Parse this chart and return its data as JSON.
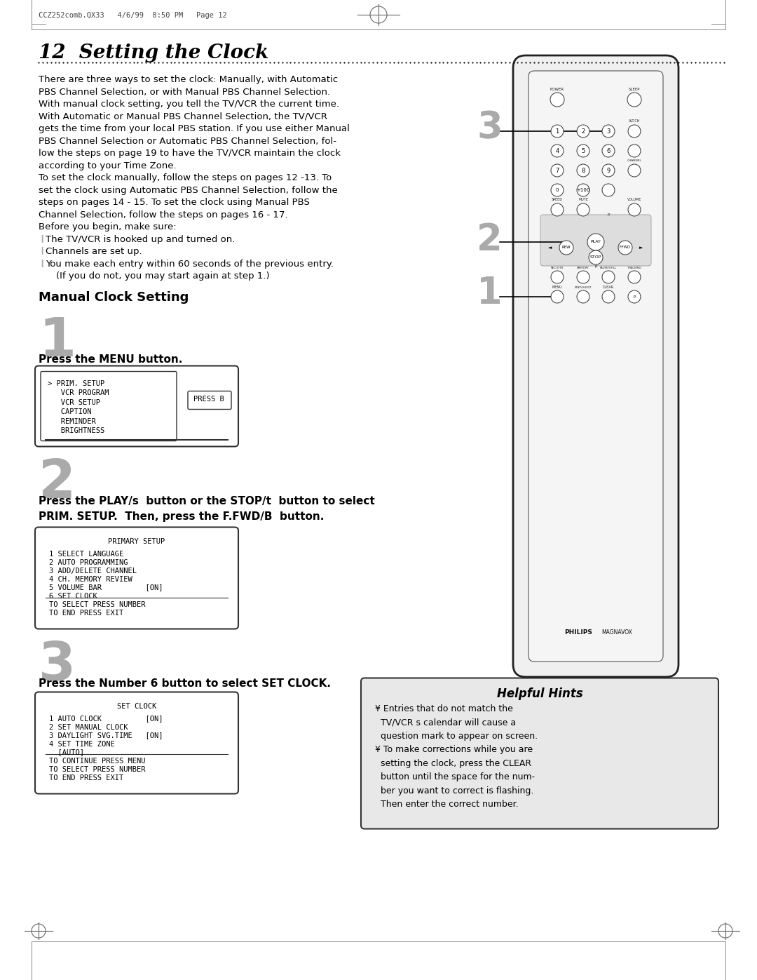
{
  "page_header": "CCZ252comb.QX33   4/6/99  8:50 PM   Page 12",
  "title": "12  Setting the Clock",
  "intro_text": [
    "There are three ways to set the clock: Manually, with Automatic",
    "PBS Channel Selection, or with Manual PBS Channel Selection.",
    "With manual clock setting, you tell the TV/VCR the current time.",
    "With Automatic or Manual PBS Channel Selection, the TV/VCR",
    "gets the time from your local PBS station. If you use either Manual",
    "PBS Channel Selection or Automatic PBS Channel Selection, fol-",
    "low the steps on page 19 to have the TV/VCR maintain the clock",
    "according to your Time Zone.",
    "To set the clock manually, follow the steps on pages 12 -13. To",
    "set the clock using Automatic PBS Channel Selection, follow the",
    "steps on pages 14 - 15. To set the clock using Manual PBS",
    "Channel Selection, follow the steps on pages 16 - 17.",
    "Before you begin, make sure:"
  ],
  "bullet_items": [
    "The TV/VCR is hooked up and turned on.",
    "Channels are set up.",
    "You make each entry within 60 seconds of the previous entry.",
    "(If you do not, you may start again at step 1.)"
  ],
  "section_title": "Manual Clock Setting",
  "step1_num": "1",
  "step1_text": "Press the MENU button.",
  "step1_screen_title": "> PRIM. SETUP",
  "step1_screen_items": [
    "> PRIM. SETUP",
    "   VCR PROGRAM",
    "   VCR SETUP",
    "   CAPTION",
    "   REMINDER",
    "   BRIGHTNESS"
  ],
  "step1_screen_button": "PRESS B",
  "step2_num": "2",
  "step2_text1": "Press the PLAY/s  button or the STOP/t  button to select",
  "step2_text2": "PRIM. SETUP.  Then, press the F.FWD/B  button.",
  "step2_screen_title": "PRIMARY SETUP",
  "step2_screen_items": [
    "1 SELECT LANGUAGE",
    "2 AUTO PROGRAMMING",
    "3 ADD/DELETE CHANNEL",
    "4 CH. MEMORY REVIEW",
    "5 VOLUME BAR          [ON]",
    "6 SET CLOCK"
  ],
  "step2_screen_footer": [
    "TO SELECT PRESS NUMBER",
    "TO END PRESS EXIT"
  ],
  "step3_num": "3",
  "step3_text": "Press the Number 6 button to select SET CLOCK.",
  "step3_screen_title": "SET CLOCK",
  "step3_screen_items": [
    "1 AUTO CLOCK          [ON]",
    "2 SET MANUAL CLOCK",
    "3 DAYLIGHT SVG.TIME   [ON]",
    "4 SET TIME ZONE",
    "  [AUTO]"
  ],
  "step3_screen_footer": [
    "TO CONTINUE PRESS MENU",
    "TO SELECT PRESS NUMBER",
    "TO END PRESS EXIT"
  ],
  "helpful_hints_title": "Helpful Hints",
  "helpful_hints": [
    "¥ Entries that do not match the",
    "  TV/VCR s calendar will cause a",
    "  question mark to appear on screen.",
    "¥ To make corrections while you are",
    "  setting the clock, press the CLEAR",
    "  button until the space for the num-",
    "  ber you want to correct is flashing.",
    "  Then enter the correct number."
  ],
  "bg_color": "#ffffff",
  "text_color": "#000000",
  "gray_color": "#888888",
  "light_gray": "#cccccc",
  "hint_bg": "#e8e8e8"
}
